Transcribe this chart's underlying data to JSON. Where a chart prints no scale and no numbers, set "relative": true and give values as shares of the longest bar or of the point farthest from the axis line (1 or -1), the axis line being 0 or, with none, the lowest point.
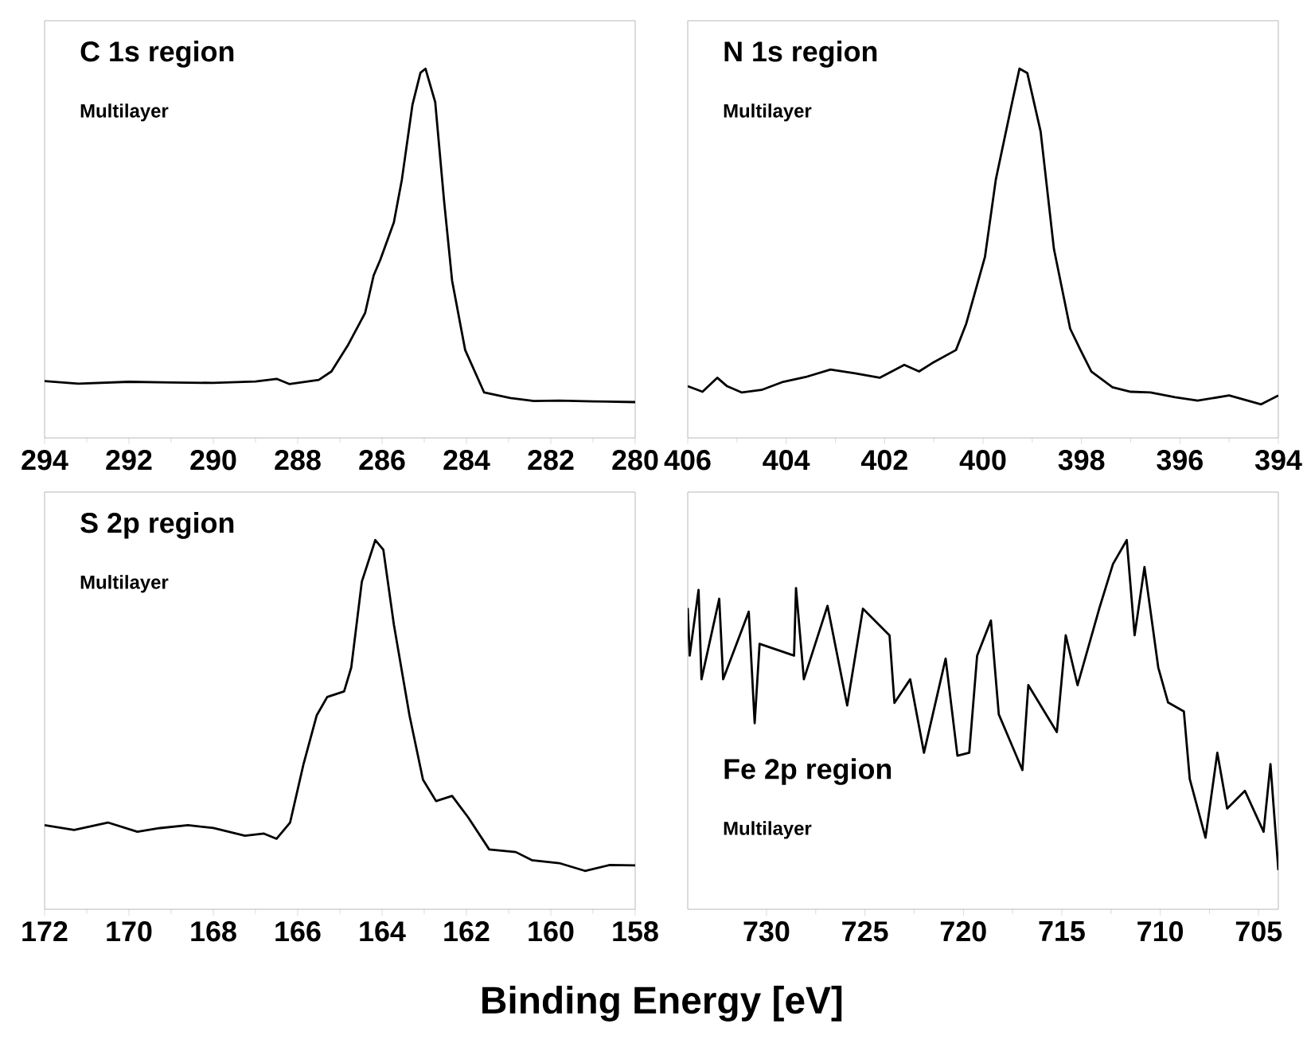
{
  "chart_data": [
    {
      "type": "line",
      "title": "C 1s region",
      "subtitle": "Multilayer",
      "relative": true,
      "xlim": [
        294,
        280
      ],
      "xticks": [
        294,
        292,
        290,
        288,
        286,
        284,
        282,
        280
      ],
      "x": [
        294,
        293.2,
        292,
        291,
        290,
        289,
        288.5,
        288.2,
        287.5,
        287.2,
        286.8,
        286.4,
        286.2,
        286.04,
        285.72,
        285.53,
        285.28,
        285.09,
        284.97,
        284.74,
        284.53,
        284.34,
        284.03,
        283.58,
        282.96,
        282.4,
        281.8,
        281,
        280
      ],
      "series": [
        {
          "color": "#000000",
          "values": [
            0.154,
            0.147,
            0.152,
            0.15,
            0.149,
            0.153,
            0.16,
            0.146,
            0.157,
            0.18,
            0.253,
            0.339,
            0.44,
            0.483,
            0.584,
            0.7,
            0.902,
            0.989,
            1.0,
            0.909,
            0.642,
            0.426,
            0.238,
            0.123,
            0.108,
            0.1,
            0.101,
            0.099,
            0.097
          ]
        }
      ]
    },
    {
      "type": "line",
      "title": "N 1s region",
      "subtitle": "Multilayer",
      "relative": true,
      "xlim": [
        406,
        394
      ],
      "xticks": [
        406,
        404,
        402,
        400,
        398,
        396,
        394
      ],
      "x": [
        406,
        405.7,
        405.4,
        405.2,
        404.9,
        404.5,
        404.06,
        403.6,
        403.1,
        402.6,
        402.1,
        401.6,
        401.3,
        401.04,
        400.55,
        400.34,
        399.96,
        399.74,
        399.42,
        399.26,
        399.1,
        398.83,
        398.56,
        398.23,
        398.02,
        397.8,
        397.37,
        397,
        396.6,
        396.1,
        395.64,
        395.0,
        394.35,
        394
      ],
      "series": [
        {
          "color": "#000000",
          "values": [
            0.14,
            0.125,
            0.163,
            0.14,
            0.123,
            0.13,
            0.152,
            0.165,
            0.185,
            0.175,
            0.163,
            0.198,
            0.18,
            0.202,
            0.238,
            0.31,
            0.491,
            0.7,
            0.902,
            1.0,
            0.988,
            0.83,
            0.512,
            0.296,
            0.238,
            0.18,
            0.137,
            0.125,
            0.123,
            0.11,
            0.101,
            0.115,
            0.091,
            0.115
          ]
        }
      ]
    },
    {
      "type": "line",
      "title": "S 2p region",
      "subtitle": "Multilayer",
      "xlabel": "Binding Energy [eV]",
      "relative": true,
      "xlim": [
        172,
        158
      ],
      "xticks": [
        172,
        170,
        168,
        166,
        164,
        162,
        160,
        158
      ],
      "x": [
        172,
        171.3,
        170.5,
        169.8,
        169.26,
        168.6,
        168.0,
        167.25,
        166.8,
        166.5,
        166.18,
        165.86,
        165.55,
        165.3,
        164.9,
        164.73,
        164.48,
        164.16,
        163.97,
        163.72,
        163.35,
        163.03,
        162.72,
        162.34,
        161.96,
        161.46,
        160.83,
        160.45,
        159.8,
        159.19,
        158.6,
        158
      ],
      "series": [
        {
          "color": "#000000",
          "values": [
            0.228,
            0.215,
            0.235,
            0.21,
            0.22,
            0.228,
            0.22,
            0.199,
            0.205,
            0.191,
            0.235,
            0.394,
            0.525,
            0.575,
            0.59,
            0.655,
            0.887,
            1.0,
            0.974,
            0.771,
            0.525,
            0.351,
            0.293,
            0.307,
            0.249,
            0.162,
            0.155,
            0.133,
            0.125,
            0.104,
            0.12,
            0.119
          ]
        }
      ]
    },
    {
      "type": "line",
      "title": "Fe 2p region",
      "subtitle": "Multilayer",
      "relative": true,
      "xlim": [
        734,
        704
      ],
      "xticks": [
        730,
        725,
        720,
        715,
        710,
        705
      ],
      "x": [
        734,
        733.9,
        733.45,
        733.3,
        732.4,
        732.2,
        730.9,
        730.6,
        730.35,
        728.6,
        728.5,
        728.1,
        726.9,
        725.9,
        725.1,
        723.75,
        723.5,
        722.7,
        722.0,
        720.9,
        720.3,
        719.7,
        719.3,
        718.6,
        718.2,
        717.0,
        716.7,
        715.25,
        714.8,
        714.2,
        713.1,
        712.4,
        711.7,
        711.3,
        710.8,
        710.1,
        709.6,
        708.8,
        708.5,
        707.7,
        707.1,
        706.6,
        705.7,
        704.75,
        704.4,
        704.0
      ],
      "series": [
        {
          "color": "#000000",
          "values": [
            0.816,
            0.687,
            0.865,
            0.623,
            0.841,
            0.623,
            0.806,
            0.504,
            0.719,
            0.687,
            0.87,
            0.623,
            0.822,
            0.552,
            0.814,
            0.742,
            0.559,
            0.623,
            0.424,
            0.679,
            0.416,
            0.424,
            0.687,
            0.782,
            0.528,
            0.377,
            0.607,
            0.48,
            0.742,
            0.607,
            0.814,
            0.935,
            1.0,
            0.742,
            0.927,
            0.655,
            0.56,
            0.536,
            0.353,
            0.194,
            0.424,
            0.273,
            0.321,
            0.21,
            0.393,
            0.106
          ]
        }
      ]
    }
  ]
}
